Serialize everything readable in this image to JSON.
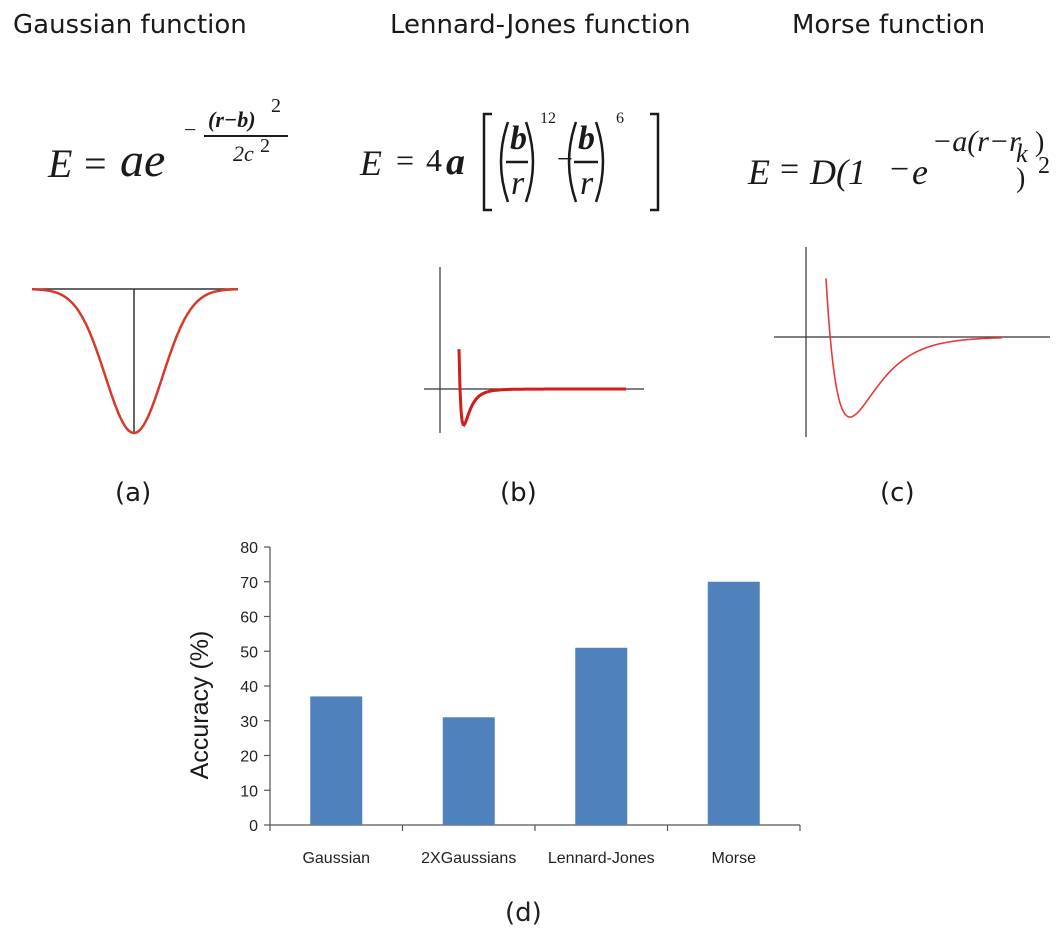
{
  "panels": [
    {
      "title": "Gaussian function",
      "label": "(a)"
    },
    {
      "title": "Lennard-Jones function",
      "label": "(b)"
    },
    {
      "title": "Morse function",
      "label": "(c)"
    }
  ],
  "formulas": {
    "gaussian": {
      "lhs": "E",
      "eq": "=",
      "a": "ae",
      "minus": "−",
      "num": "(r−b)",
      "sq": "2",
      "den": "2c",
      "den_sq": "2"
    },
    "lj": {
      "lhs": "E",
      "eq": "=",
      "coef": "4",
      "a": "a",
      "b": "b",
      "r": "r",
      "p12": "12",
      "p6": "6",
      "minus": "−"
    },
    "morse": {
      "lhs": "E",
      "eq": "=",
      "D": "D(1",
      "minus": "−",
      "e": "e",
      "exp": "−a(r−r",
      "sub": "k",
      "close": ")",
      "end": ")",
      "sq": "2"
    }
  },
  "colors": {
    "curve": "#d63a2a",
    "lj_curve": "#d51a1a",
    "bar": "#4f81bd",
    "axis": "#333333"
  },
  "chart_label": "(d)",
  "chart_data": {
    "type": "bar",
    "categories": [
      "Gaussian",
      "2XGaussians",
      "Lennard-Jones",
      "Morse"
    ],
    "values": [
      37,
      31,
      51,
      70
    ],
    "ylabel": "Accuracy (%)",
    "xlabel": "",
    "ylim": [
      0,
      80
    ],
    "yticks": [
      0,
      10,
      20,
      30,
      40,
      50,
      60,
      70,
      80
    ],
    "grid": false
  }
}
